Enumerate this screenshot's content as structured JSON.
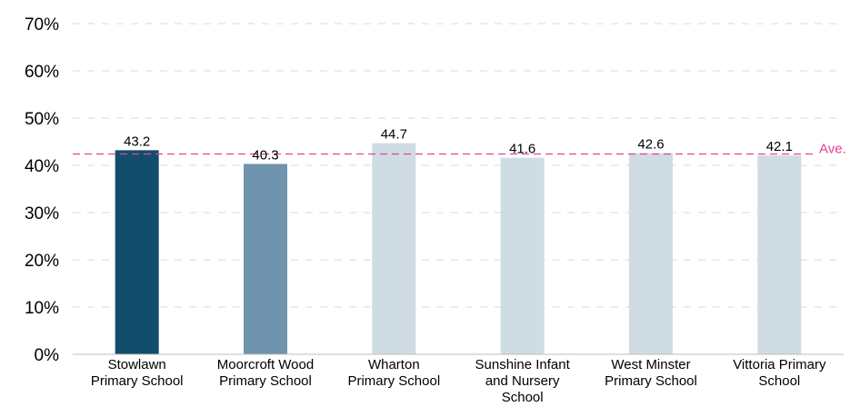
{
  "chart_data": {
    "type": "bar",
    "categories": [
      [
        "Stowlawn",
        "Primary School"
      ],
      [
        "Moorcroft Wood",
        "Primary School"
      ],
      [
        "Wharton",
        "Primary School"
      ],
      [
        "Sunshine Infant",
        "and Nursery",
        "School"
      ],
      [
        "West Minster",
        "Primary School"
      ],
      [
        "Vittoria Primary",
        "School"
      ]
    ],
    "values": [
      43.2,
      40.3,
      44.7,
      41.6,
      42.6,
      42.1
    ],
    "value_labels": [
      "43.2",
      "40.3",
      "44.7",
      "41.6",
      "42.6",
      "42.1"
    ],
    "bar_colors": [
      "#124e6b",
      "#7094ad",
      "#cfdce4",
      "#cfdce4",
      "#cfdce4",
      "#cfdce4"
    ],
    "average": {
      "label": "Ave.",
      "value": 42.4,
      "color": "#e6409a"
    },
    "ylim": [
      0,
      70
    ],
    "yticks": [
      0,
      10,
      20,
      30,
      40,
      50,
      60,
      70
    ],
    "ytick_labels": [
      "0%",
      "10%",
      "20%",
      "30%",
      "40%",
      "50%",
      "60%",
      "70%"
    ],
    "grid": true,
    "grid_color": "#d9d9d9",
    "title": "",
    "xlabel": "",
    "ylabel": ""
  }
}
